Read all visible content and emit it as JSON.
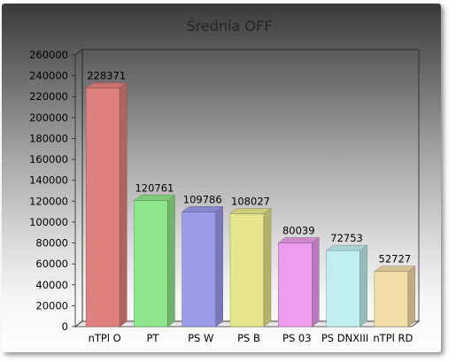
{
  "chart_data": {
    "type": "bar",
    "title": "Średnia OFF",
    "xlabel": "",
    "ylabel": "",
    "ylim": [
      0,
      260000
    ],
    "yticks": [
      0,
      20000,
      40000,
      60000,
      80000,
      100000,
      120000,
      140000,
      160000,
      180000,
      200000,
      220000,
      240000,
      260000
    ],
    "categories": [
      "nTPl O",
      "PT",
      "PS W",
      "PS B",
      "PS 03",
      "PS DNXIII",
      "nTPl RD"
    ],
    "values": [
      228371,
      120761,
      109786,
      108027,
      80039,
      72753,
      52727
    ],
    "data_labels": [
      "228371",
      "120761",
      "109786",
      "108027",
      "80039",
      "72753",
      "52727"
    ],
    "bar_colors": [
      "#e0807d",
      "#90e68c",
      "#9b9be8",
      "#e6e68c",
      "#ee9ced",
      "#bff0ef",
      "#f2dca8"
    ],
    "grid": false,
    "legend": "none",
    "style": "3d"
  }
}
